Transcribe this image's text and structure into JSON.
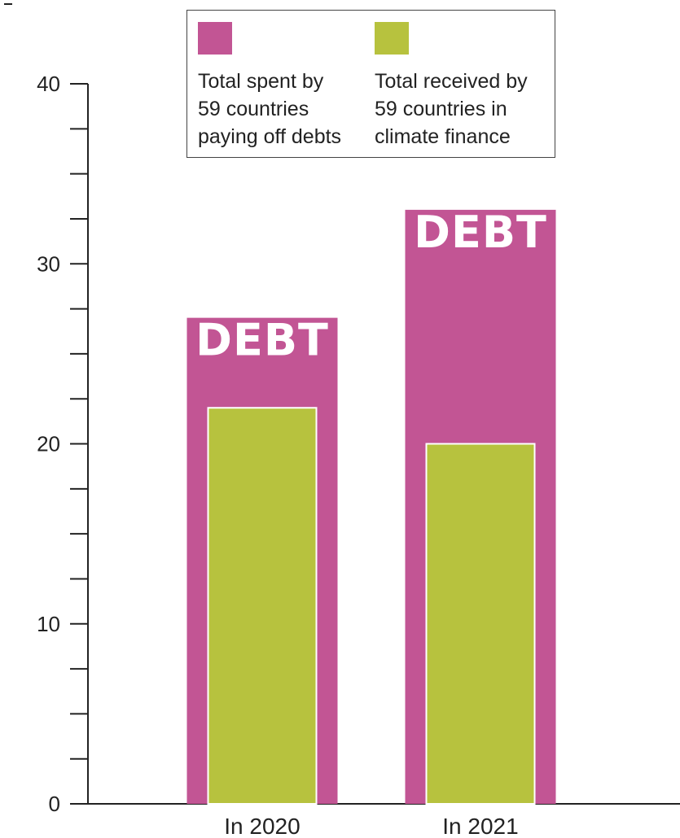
{
  "colors": {
    "debt": "#c25594",
    "climate": "#b7c23e",
    "axis": "#222222"
  },
  "legend": {
    "items": [
      {
        "label": "Total spent by\n59 countries\npaying off debts",
        "color": "#c25594"
      },
      {
        "label": "Total received by\n59 countries in\nclimate finance",
        "color": "#b7c23e"
      }
    ]
  },
  "chart_data": {
    "type": "bar",
    "categories": [
      "In 2020",
      "In 2021"
    ],
    "series": [
      {
        "name": "Total spent by 59 countries paying off debts",
        "values": [
          27,
          33
        ],
        "bar_label": "DEBT",
        "color": "#c25594"
      },
      {
        "name": "Total received by 59 countries in climate finance",
        "values": [
          22,
          20
        ],
        "color": "#b7c23e"
      }
    ],
    "title": "",
    "xlabel": "",
    "ylabel": "",
    "ylim": [
      0,
      40
    ],
    "yticks": [
      0,
      10,
      20,
      30,
      40
    ],
    "minor_tick_step": 2.5,
    "grid": false,
    "legend_position": "top"
  }
}
